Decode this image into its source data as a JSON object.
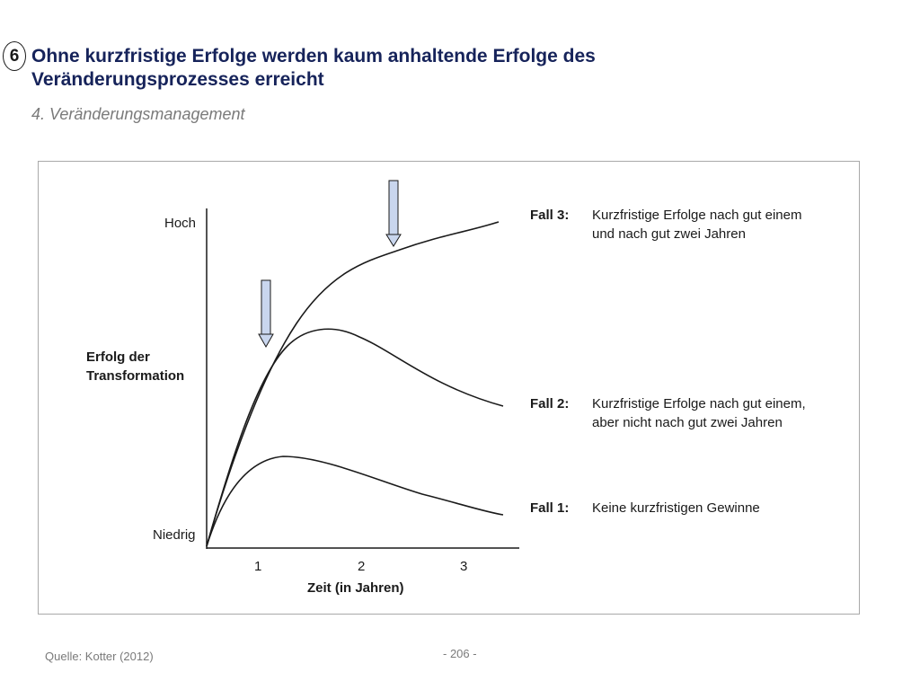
{
  "header": {
    "number": "6",
    "title_line1": "Ohne kurzfristige Erfolge werden kaum anhaltende Erfolge des",
    "title_line2": "Veränderungsprozesses erreicht",
    "subtitle": "4. Veränderungsmanagement"
  },
  "diagram": {
    "y_high": "Hoch",
    "y_low": "Niedrig",
    "y_label_line1": "Erfolg der",
    "y_label_line2": "Transformation",
    "x_ticks": [
      "1",
      "2",
      "3"
    ],
    "x_label": "Zeit (in Jahren)",
    "arrow_color": "#c9d6ee",
    "cases": [
      {
        "key": "Fall 3:",
        "text": "Kurzfristige Erfolge nach gut einem und nach gut zwei Jahren"
      },
      {
        "key": "Fall 2:",
        "text": "Kurzfristige Erfolge nach gut einem, aber nicht  nach gut zwei Jahren"
      },
      {
        "key": "Fall 1:",
        "text": "Keine kurzfristigen Gewinne"
      }
    ]
  },
  "footer": {
    "source": "Quelle: Kotter (2012)",
    "page": "- 206 -"
  }
}
